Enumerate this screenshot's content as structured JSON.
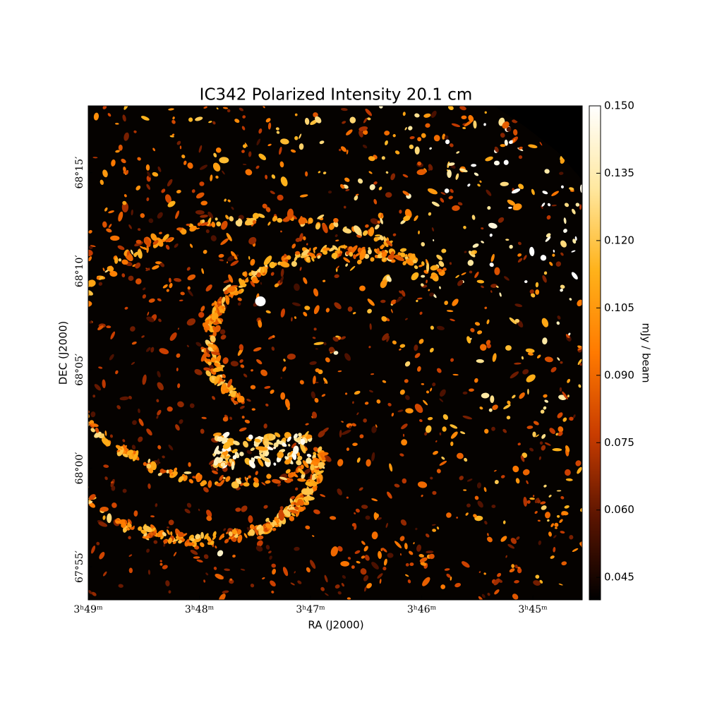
{
  "chart_data": {
    "type": "image",
    "title": "IC342 Polarized Intensity 20.1 cm",
    "xlabel": "RA (J2000)",
    "ylabel": "DEC (J2000)",
    "xlim": [
      229,
      224.556
    ],
    "xticks": [
      {
        "value": 229,
        "label": "3ʰ49ᵐ"
      },
      {
        "value": 228,
        "label": "3ʰ48ᵐ"
      },
      {
        "value": 227,
        "label": "3ʰ47ᵐ"
      },
      {
        "value": 226,
        "label": "3ʰ46ᵐ"
      },
      {
        "value": 225,
        "label": "3ʰ45ᵐ"
      }
    ],
    "ylim": [
      4073.32,
      4098.39
    ],
    "yticks": [
      {
        "value": 4075,
        "label": "67°55′"
      },
      {
        "value": 4080,
        "label": "68°00′"
      },
      {
        "value": 4085,
        "label": "68°05′"
      },
      {
        "value": 4090,
        "label": "68°10′"
      },
      {
        "value": 4095,
        "label": "68°15′"
      }
    ],
    "colorbar_label": "mJy / beam",
    "clim": [
      0.04,
      0.15
    ],
    "colorbar_ticks": [
      0.045,
      {
        "value": 0.06,
        "label": "0.060"
      },
      0.075,
      {
        "value": 0.09,
        "label": "0.090"
      },
      0.105,
      {
        "value": 0.12,
        "label": "0.120"
      },
      0.135,
      {
        "value": 0.15,
        "label": "0.150"
      }
    ],
    "colormap": [
      "#000000",
      "#5a1400",
      "#c83c00",
      "#ff7a00",
      "#ffb21a",
      "#ffe8a0",
      "#ffffff"
    ]
  }
}
